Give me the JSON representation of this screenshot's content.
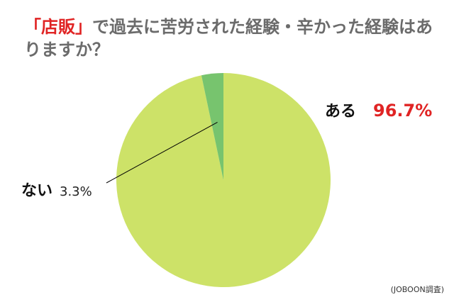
{
  "chart_data": {
    "type": "pie",
    "title_highlight": "「店販」",
    "title": "で過去に苦労された経験・辛かった経験はありますか？",
    "categories": [
      "ある",
      "ない"
    ],
    "values": [
      96.7,
      3.3
    ],
    "value_labels": [
      "96.7%",
      "3.3%"
    ],
    "colors": [
      "#cde268",
      "#77c46e"
    ],
    "source": "(JOBOON調査)"
  }
}
